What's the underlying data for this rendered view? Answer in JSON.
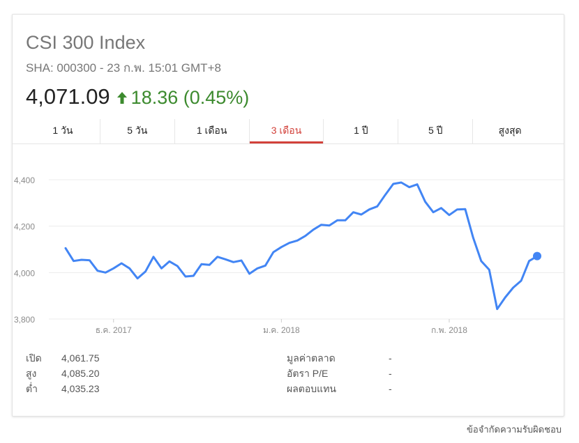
{
  "header": {
    "title": "CSI 300 Index",
    "subtitle": "SHA: 000300 - 23 ก.พ. 15:01 GMT+8",
    "price": "4,071.09",
    "change": "18.36 (0.45%)",
    "change_color": "#3c8a2e"
  },
  "tabs": [
    {
      "label": "1 วัน"
    },
    {
      "label": "5 วัน"
    },
    {
      "label": "1 เดือน"
    },
    {
      "label": "3 เดือน",
      "active": true
    },
    {
      "label": "1 ปี"
    },
    {
      "label": "5 ปี"
    },
    {
      "label": "สูงสุด"
    }
  ],
  "stats": {
    "left": [
      {
        "label": "เปิด",
        "value": "4,061.75"
      },
      {
        "label": "สูง",
        "value": "4,085.20"
      },
      {
        "label": "ต่ำ",
        "value": "4,035.23"
      }
    ],
    "right": [
      {
        "label": "มูลค่าตลาด",
        "value": "-"
      },
      {
        "label": "อัตรา P/E",
        "value": "-"
      },
      {
        "label": "ผลตอบแทน",
        "value": "-"
      }
    ]
  },
  "footer": {
    "disclaimer": "ข้อจำกัดความรับผิดชอบ"
  },
  "chart_data": {
    "type": "line",
    "line_color": "#4285f4",
    "ylim": [
      3800,
      4400
    ],
    "yticks": [
      "3,800",
      "4,000",
      "4,200",
      "4,400"
    ],
    "ytick_values": [
      3800,
      4000,
      4200,
      4400
    ],
    "xticks": [
      {
        "label": "ธ.ค. 2017",
        "index": 6
      },
      {
        "label": "ม.ค. 2018",
        "index": 27
      },
      {
        "label": "ก.พ. 2018",
        "index": 48
      }
    ],
    "grid": true,
    "values": [
      4105,
      4050,
      4055,
      4053,
      4008,
      4000,
      4018,
      4040,
      4018,
      3975,
      4005,
      4068,
      4018,
      4048,
      4028,
      3983,
      3986,
      4036,
      4033,
      4068,
      4057,
      4045,
      4052,
      3995,
      4018,
      4030,
      4088,
      4110,
      4128,
      4138,
      4158,
      4185,
      4206,
      4203,
      4225,
      4225,
      4260,
      4250,
      4272,
      4285,
      4335,
      4382,
      4388,
      4368,
      4380,
      4305,
      4260,
      4278,
      4248,
      4272,
      4273,
      4150,
      4050,
      4012,
      3843,
      3893,
      3935,
      3965,
      4050,
      4071
    ]
  }
}
